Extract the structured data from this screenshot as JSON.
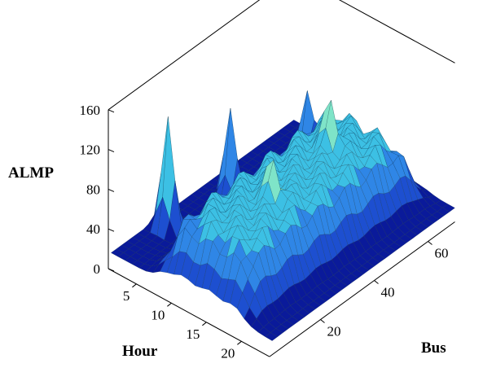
{
  "chart_data": {
    "type": "surface",
    "title": "",
    "zlabel": "ALMP",
    "xlabel": "Hour",
    "ylabel": "Bus",
    "z_ticks": [
      "0",
      "40",
      "80",
      "120",
      "160"
    ],
    "x_ticks": [
      "5",
      "10",
      "15",
      "20"
    ],
    "y_ticks": [
      "20",
      "40",
      "60"
    ],
    "zlim": [
      0,
      160
    ],
    "xlim": [
      1,
      24
    ],
    "ylim": [
      1,
      70
    ],
    "colormap": [
      "#0a1a9a",
      "#1d4fd0",
      "#2f86e6",
      "#3cc0e4",
      "#7fe4c8",
      "#d8e66a",
      "#e39a3a",
      "#b33a1e"
    ],
    "baseline_value": 14,
    "plateau_value": 78,
    "plateau_hours": [
      8,
      20
    ],
    "peaks": [
      {
        "hour": 6,
        "bus": 62,
        "value": 108
      },
      {
        "hour": 5,
        "bus": 36,
        "value": 140
      },
      {
        "hour": 3,
        "bus": 18,
        "value": 160
      },
      {
        "hour": 15,
        "bus": 26,
        "value": 85
      },
      {
        "hour": 14,
        "bus": 50,
        "value": 95
      }
    ]
  }
}
